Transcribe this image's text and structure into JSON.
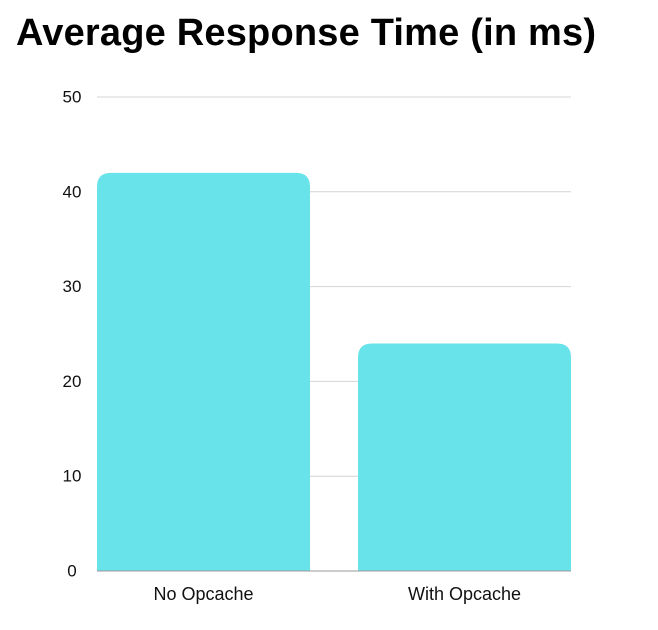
{
  "chart_data": {
    "type": "bar",
    "title": "Average Response Time (in ms)",
    "xlabel": "",
    "ylabel": "",
    "categories": [
      "No Opcache",
      "With Opcache"
    ],
    "values": [
      42,
      24
    ],
    "ylim": [
      0,
      50
    ],
    "yticks": [
      "0",
      "10",
      "20",
      "30",
      "40",
      "50"
    ],
    "grid": true,
    "legend": "none",
    "bar_color": "#68E3E9"
  }
}
